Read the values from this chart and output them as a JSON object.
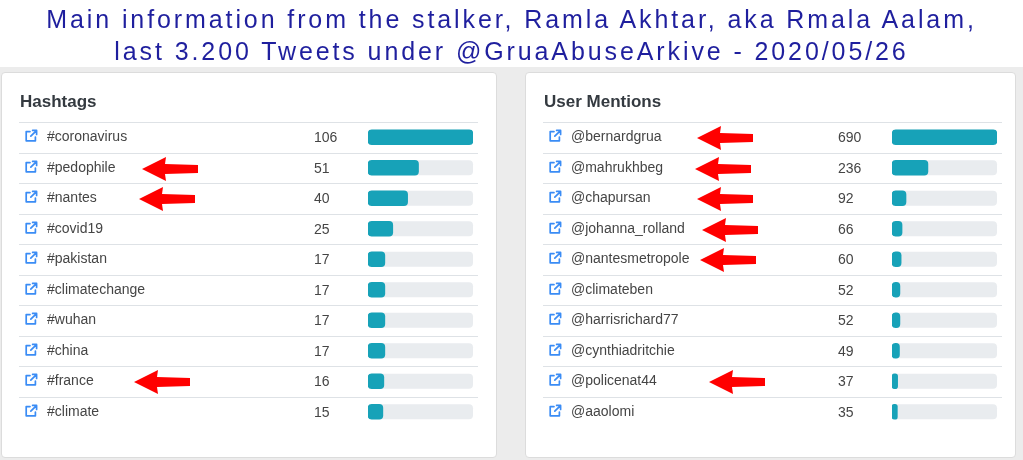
{
  "chart_data": [
    {
      "type": "other",
      "title": "Main information from the stalker, Ramla Akhtar, aka Rmala Aalam, last 3.200 Tweets under @GruaAbuseArkive - 2020/05/26"
    },
    {
      "type": "bar",
      "orientation": "horizontal",
      "title": "Hashtags",
      "categories": [
        "#coronavirus",
        "#pedophile",
        "#nantes",
        "#covid19",
        "#pakistan",
        "#climatechange",
        "#wuhan",
        "#china",
        "#france",
        "#climate"
      ],
      "values": [
        106,
        51,
        40,
        25,
        17,
        17,
        17,
        17,
        16,
        15
      ],
      "color": "#17a2b8",
      "xlim": [
        0,
        106
      ],
      "data_labels": true,
      "grid": "y",
      "tick_labels": "y"
    },
    {
      "type": "bar",
      "orientation": "horizontal",
      "title": "User Mentions",
      "categories": [
        "@bernardgrua",
        "@mahrukhbeg",
        "@chapursan",
        "@johanna_rolland",
        "@nantesmetropole",
        "@climateben",
        "@harrisrichard77",
        "@cynthiadritchie",
        "@policenat44",
        "@aaolomi"
      ],
      "values": [
        690,
        236,
        92,
        66,
        60,
        52,
        52,
        49,
        37,
        35
      ],
      "color": "#17a2b8",
      "xlim": [
        0,
        690
      ],
      "data_labels": true,
      "grid": "y",
      "tick_labels": "y"
    }
  ]
}
